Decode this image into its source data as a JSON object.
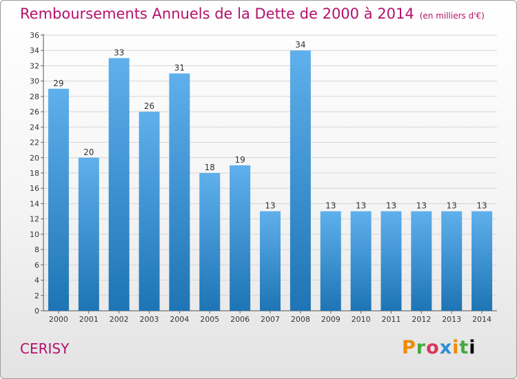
{
  "title": "Remboursements Annuels de la Dette de 2000 à 2014",
  "unit_note": "(en milliers d'€)",
  "commune": "CERISY",
  "brand": "Proxiti",
  "colors": {
    "title": "#b5106b",
    "bar_top": "#5fb0ec",
    "bar_bottom": "#1e74b4",
    "grid": "#d6d6d6"
  },
  "chart_data": {
    "type": "bar",
    "categories": [
      "2000",
      "2001",
      "2002",
      "2003",
      "2004",
      "2005",
      "2006",
      "2007",
      "2008",
      "2009",
      "2010",
      "2011",
      "2012",
      "2013",
      "2014"
    ],
    "values": [
      29,
      20,
      33,
      26,
      31,
      18,
      19,
      13,
      34,
      13,
      13,
      13,
      13,
      13,
      13
    ],
    "ylim": [
      0,
      36
    ],
    "yticks": [
      0,
      2,
      4,
      6,
      8,
      10,
      12,
      14,
      16,
      18,
      20,
      22,
      24,
      26,
      28,
      30,
      32,
      34,
      36
    ],
    "grid": true,
    "data_labels": true
  }
}
